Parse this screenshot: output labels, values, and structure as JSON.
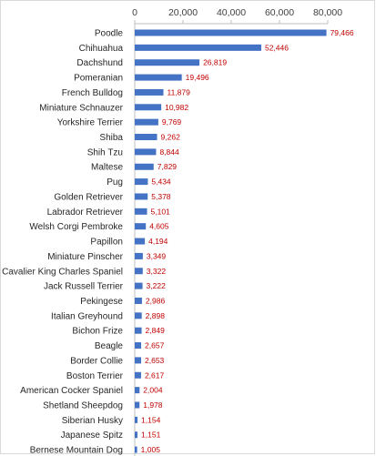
{
  "chart_data": {
    "type": "bar",
    "orientation": "horizontal",
    "categories": [
      "Poodle",
      "Chihuahua",
      "Dachshund",
      "Pomeranian",
      "French Bulldog",
      "Miniature Schnauzer",
      "Yorkshire Terrier",
      "Shiba",
      "Shih Tzu",
      "Maltese",
      "Pug",
      "Golden Retriever",
      "Labrador Retriever",
      "Welsh Corgi Pembroke",
      "Papillon",
      "Miniature Pinscher",
      "Cavalier King Charles Spaniel",
      "Jack Russell Terrier",
      "Pekingese",
      "Italian Greyhound",
      "Bichon Frize",
      "Beagle",
      "Border Collie",
      "Boston Terrier",
      "American Cocker Spaniel",
      "Shetland Sheepdog",
      "Siberian Husky",
      "Japanese Spitz",
      "Bernese Mountain Dog"
    ],
    "values": [
      79466,
      52446,
      26819,
      19496,
      11879,
      10982,
      9769,
      9262,
      8844,
      7829,
      5434,
      5378,
      5101,
      4605,
      4194,
      3349,
      3322,
      3222,
      2986,
      2898,
      2849,
      2657,
      2653,
      2617,
      2004,
      1978,
      1154,
      1151,
      1005
    ],
    "data_labels": [
      "79,466",
      "52,446",
      "26,819",
      "19,496",
      "11,879",
      "10,982",
      "9,769",
      "9,262",
      "8,844",
      "7,829",
      "5,434",
      "5,378",
      "5,101",
      "4,605",
      "4,194",
      "3,349",
      "3,322",
      "3,222",
      "2,986",
      "2,898",
      "2,849",
      "2,657",
      "2,653",
      "2,617",
      "2,004",
      "1,978",
      "1,154",
      "1,151",
      "1,005"
    ],
    "x_ticks": [
      0,
      20000,
      40000,
      60000,
      80000
    ],
    "x_tick_labels": [
      "0",
      "20,000",
      "40,000",
      "60,000",
      "80,000"
    ],
    "xlim": [
      0,
      80000
    ],
    "x_axis_position": "top",
    "grid": false,
    "legend": false,
    "title": "",
    "xlabel": "",
    "ylabel": "",
    "colors": {
      "bar": "#4472c4",
      "data_label": "#c00000",
      "category_label": "#262626",
      "tick_label": "#404040",
      "axis_line": "#bfbfbf",
      "frame": "#d9d9d9"
    }
  }
}
